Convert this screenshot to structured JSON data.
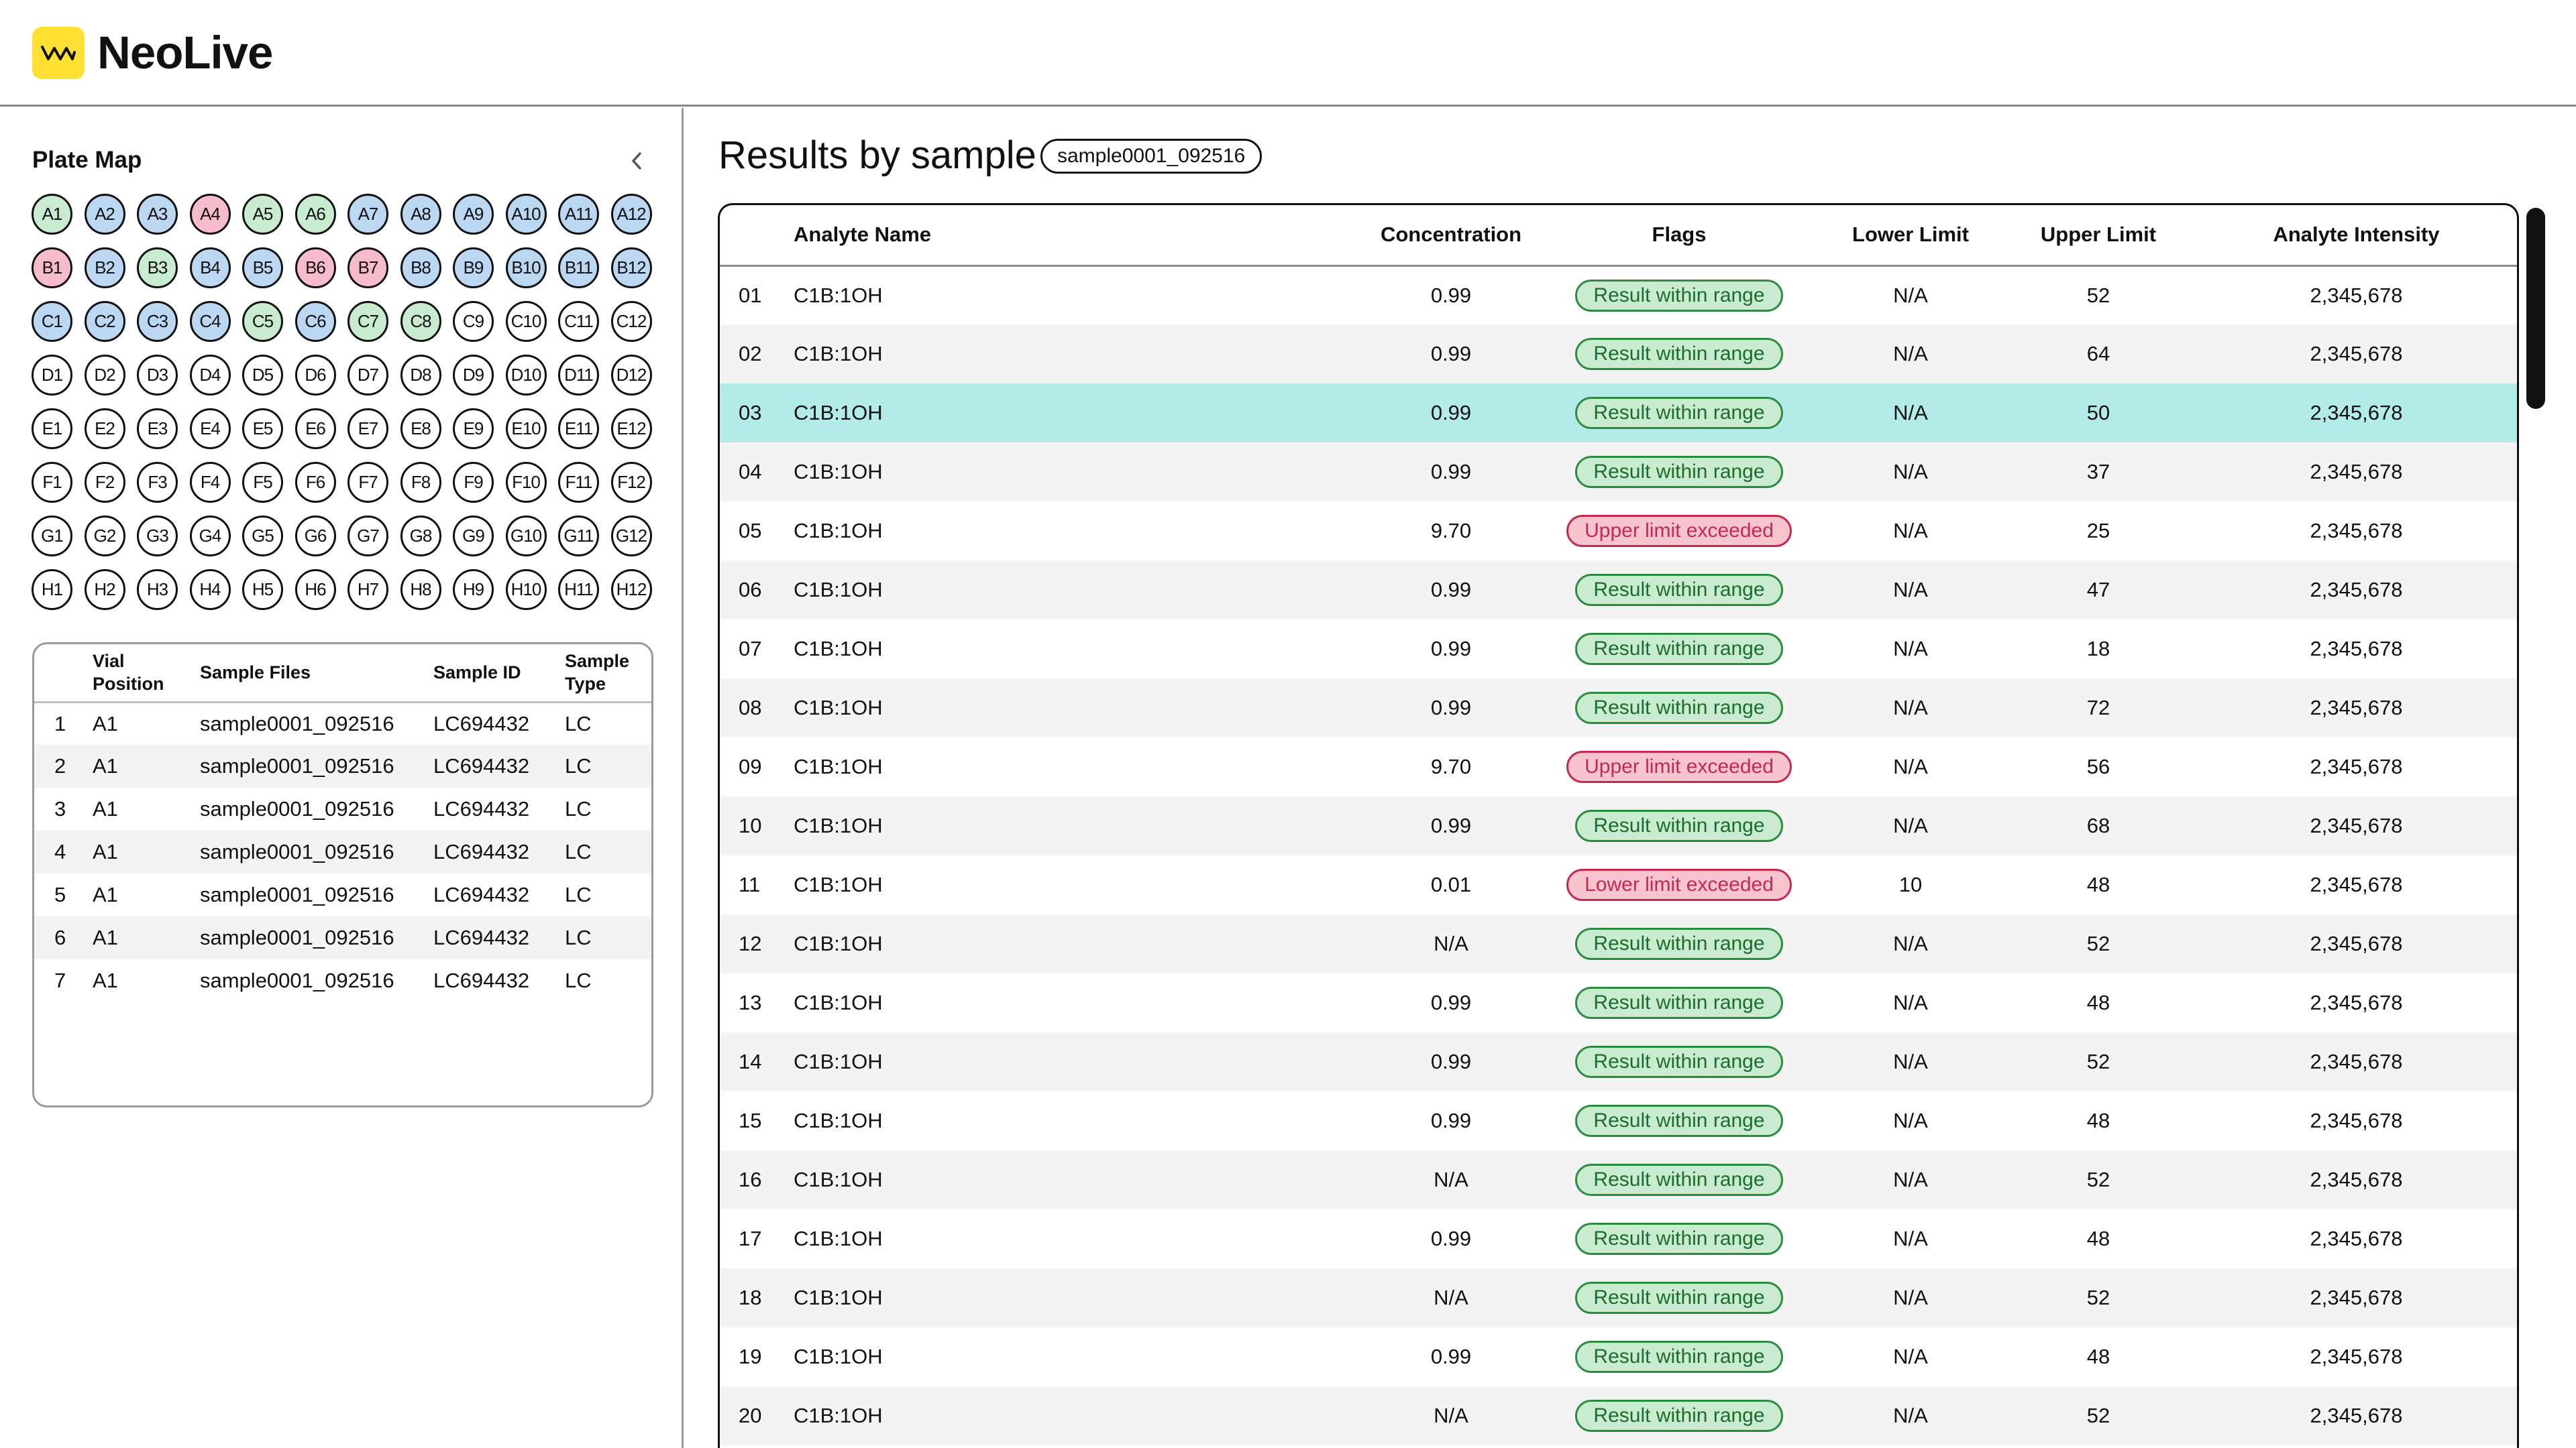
{
  "app": {
    "title": "NeoLive",
    "accent": "#ffe033"
  },
  "plate": {
    "title": "Plate Map",
    "wells": [
      {
        "label": "A1",
        "status": "green"
      },
      {
        "label": "A2",
        "status": "blue"
      },
      {
        "label": "A3",
        "status": "blue"
      },
      {
        "label": "A4",
        "status": "red"
      },
      {
        "label": "A5",
        "status": "green"
      },
      {
        "label": "A6",
        "status": "green"
      },
      {
        "label": "A7",
        "status": "blue"
      },
      {
        "label": "A8",
        "status": "blue"
      },
      {
        "label": "A9",
        "status": "blue"
      },
      {
        "label": "A10",
        "status": "blue"
      },
      {
        "label": "A11",
        "status": "blue"
      },
      {
        "label": "A12",
        "status": "blue"
      },
      {
        "label": "B1",
        "status": "red"
      },
      {
        "label": "B2",
        "status": "blue"
      },
      {
        "label": "B3",
        "status": "green"
      },
      {
        "label": "B4",
        "status": "blue"
      },
      {
        "label": "B5",
        "status": "blue"
      },
      {
        "label": "B6",
        "status": "red"
      },
      {
        "label": "B7",
        "status": "red"
      },
      {
        "label": "B8",
        "status": "blue"
      },
      {
        "label": "B9",
        "status": "blue"
      },
      {
        "label": "B10",
        "status": "blue"
      },
      {
        "label": "B11",
        "status": "blue"
      },
      {
        "label": "B12",
        "status": "blue"
      },
      {
        "label": "C1",
        "status": "blue"
      },
      {
        "label": "C2",
        "status": "blue"
      },
      {
        "label": "C3",
        "status": "blue"
      },
      {
        "label": "C4",
        "status": "blue"
      },
      {
        "label": "C5",
        "status": "green"
      },
      {
        "label": "C6",
        "status": "blue"
      },
      {
        "label": "C7",
        "status": "green"
      },
      {
        "label": "C8",
        "status": "green"
      },
      {
        "label": "C9",
        "status": "empty"
      },
      {
        "label": "C10",
        "status": "empty"
      },
      {
        "label": "C11",
        "status": "empty"
      },
      {
        "label": "C12",
        "status": "empty"
      },
      {
        "label": "D1",
        "status": "empty"
      },
      {
        "label": "D2",
        "status": "empty"
      },
      {
        "label": "D3",
        "status": "empty"
      },
      {
        "label": "D4",
        "status": "empty"
      },
      {
        "label": "D5",
        "status": "empty"
      },
      {
        "label": "D6",
        "status": "empty"
      },
      {
        "label": "D7",
        "status": "empty"
      },
      {
        "label": "D8",
        "status": "empty"
      },
      {
        "label": "D9",
        "status": "empty"
      },
      {
        "label": "D10",
        "status": "empty"
      },
      {
        "label": "D11",
        "status": "empty"
      },
      {
        "label": "D12",
        "status": "empty"
      },
      {
        "label": "E1",
        "status": "empty"
      },
      {
        "label": "E2",
        "status": "empty"
      },
      {
        "label": "E3",
        "status": "empty"
      },
      {
        "label": "E4",
        "status": "empty"
      },
      {
        "label": "E5",
        "status": "empty"
      },
      {
        "label": "E6",
        "status": "empty"
      },
      {
        "label": "E7",
        "status": "empty"
      },
      {
        "label": "E8",
        "status": "empty"
      },
      {
        "label": "E9",
        "status": "empty"
      },
      {
        "label": "E10",
        "status": "empty"
      },
      {
        "label": "E11",
        "status": "empty"
      },
      {
        "label": "E12",
        "status": "empty"
      },
      {
        "label": "F1",
        "status": "empty"
      },
      {
        "label": "F2",
        "status": "empty"
      },
      {
        "label": "F3",
        "status": "empty"
      },
      {
        "label": "F4",
        "status": "empty"
      },
      {
        "label": "F5",
        "status": "empty"
      },
      {
        "label": "F6",
        "status": "empty"
      },
      {
        "label": "F7",
        "status": "empty"
      },
      {
        "label": "F8",
        "status": "empty"
      },
      {
        "label": "F9",
        "status": "empty"
      },
      {
        "label": "F10",
        "status": "empty"
      },
      {
        "label": "F11",
        "status": "empty"
      },
      {
        "label": "F12",
        "status": "empty"
      },
      {
        "label": "G1",
        "status": "empty"
      },
      {
        "label": "G2",
        "status": "empty"
      },
      {
        "label": "G3",
        "status": "empty"
      },
      {
        "label": "G4",
        "status": "empty"
      },
      {
        "label": "G5",
        "status": "empty"
      },
      {
        "label": "G6",
        "status": "empty"
      },
      {
        "label": "G7",
        "status": "empty"
      },
      {
        "label": "G8",
        "status": "empty"
      },
      {
        "label": "G9",
        "status": "empty"
      },
      {
        "label": "G10",
        "status": "empty"
      },
      {
        "label": "G11",
        "status": "empty"
      },
      {
        "label": "G12",
        "status": "empty"
      },
      {
        "label": "H1",
        "status": "empty"
      },
      {
        "label": "H2",
        "status": "empty"
      },
      {
        "label": "H3",
        "status": "empty"
      },
      {
        "label": "H4",
        "status": "empty"
      },
      {
        "label": "H5",
        "status": "empty"
      },
      {
        "label": "H6",
        "status": "empty"
      },
      {
        "label": "H7",
        "status": "empty"
      },
      {
        "label": "H8",
        "status": "empty"
      },
      {
        "label": "H9",
        "status": "empty"
      },
      {
        "label": "H10",
        "status": "empty"
      },
      {
        "label": "H11",
        "status": "empty"
      },
      {
        "label": "H12",
        "status": "empty"
      }
    ],
    "status_colors": {
      "green": "#c9ecd0",
      "blue": "#bcd7f2",
      "red": "#f6bccb",
      "empty": "#ffffff"
    }
  },
  "samples": {
    "headers": {
      "num": "",
      "position": "Vial Position",
      "files": "Sample Files",
      "id": "Sample ID",
      "type": "Sample Type"
    },
    "rows": [
      {
        "num": "1",
        "position": "A1",
        "file": "sample0001_092516",
        "id": "LC694432",
        "type": "LC"
      },
      {
        "num": "2",
        "position": "A1",
        "file": "sample0001_092516",
        "id": "LC694432",
        "type": "LC"
      },
      {
        "num": "3",
        "position": "A1",
        "file": "sample0001_092516",
        "id": "LC694432",
        "type": "LC"
      },
      {
        "num": "4",
        "position": "A1",
        "file": "sample0001_092516",
        "id": "LC694432",
        "type": "LC"
      },
      {
        "num": "5",
        "position": "A1",
        "file": "sample0001_092516",
        "id": "LC694432",
        "type": "LC"
      },
      {
        "num": "6",
        "position": "A1",
        "file": "sample0001_092516",
        "id": "LC694432",
        "type": "LC"
      },
      {
        "num": "7",
        "position": "A1",
        "file": "sample0001_092516",
        "id": "LC694432",
        "type": "LC"
      }
    ]
  },
  "results": {
    "title": "Results by sample",
    "sample_chip": "sample0001_092516",
    "headers": {
      "num": "",
      "name": "Analyte Name",
      "concentration": "Concentration",
      "flags": "Flags",
      "lower": "Lower Limit",
      "upper": "Upper Limit",
      "intensity": "Analyte Intensity"
    },
    "selected_row": "03",
    "rows": [
      {
        "num": "01",
        "name": "C1B:1OH",
        "concentration": "0.99",
        "flag": "Result within range",
        "flag_kind": "ok",
        "lower": "N/A",
        "upper": "52",
        "intensity": "2,345,678"
      },
      {
        "num": "02",
        "name": "C1B:1OH",
        "concentration": "0.99",
        "flag": "Result within range",
        "flag_kind": "ok",
        "lower": "N/A",
        "upper": "64",
        "intensity": "2,345,678"
      },
      {
        "num": "03",
        "name": "C1B:1OH",
        "concentration": "0.99",
        "flag": "Result within range",
        "flag_kind": "ok",
        "lower": "N/A",
        "upper": "50",
        "intensity": "2,345,678"
      },
      {
        "num": "04",
        "name": "C1B:1OH",
        "concentration": "0.99",
        "flag": "Result within range",
        "flag_kind": "ok",
        "lower": "N/A",
        "upper": "37",
        "intensity": "2,345,678"
      },
      {
        "num": "05",
        "name": "C1B:1OH",
        "concentration": "9.70",
        "flag": "Upper limit exceeded",
        "flag_kind": "bad",
        "lower": "N/A",
        "upper": "25",
        "intensity": "2,345,678"
      },
      {
        "num": "06",
        "name": "C1B:1OH",
        "concentration": "0.99",
        "flag": "Result within range",
        "flag_kind": "ok",
        "lower": "N/A",
        "upper": "47",
        "intensity": "2,345,678"
      },
      {
        "num": "07",
        "name": "C1B:1OH",
        "concentration": "0.99",
        "flag": "Result within range",
        "flag_kind": "ok",
        "lower": "N/A",
        "upper": "18",
        "intensity": "2,345,678"
      },
      {
        "num": "08",
        "name": "C1B:1OH",
        "concentration": "0.99",
        "flag": "Result within range",
        "flag_kind": "ok",
        "lower": "N/A",
        "upper": "72",
        "intensity": "2,345,678"
      },
      {
        "num": "09",
        "name": "C1B:1OH",
        "concentration": "9.70",
        "flag": "Upper limit exceeded",
        "flag_kind": "bad",
        "lower": "N/A",
        "upper": "56",
        "intensity": "2,345,678"
      },
      {
        "num": "10",
        "name": "C1B:1OH",
        "concentration": "0.99",
        "flag": "Result within range",
        "flag_kind": "ok",
        "lower": "N/A",
        "upper": "68",
        "intensity": "2,345,678"
      },
      {
        "num": "11",
        "name": "C1B:1OH",
        "concentration": "0.01",
        "flag": "Lower limit exceeded",
        "flag_kind": "bad",
        "lower": "10",
        "upper": "48",
        "intensity": "2,345,678"
      },
      {
        "num": "12",
        "name": "C1B:1OH",
        "concentration": "N/A",
        "flag": "Result within range",
        "flag_kind": "ok",
        "lower": "N/A",
        "upper": "52",
        "intensity": "2,345,678"
      },
      {
        "num": "13",
        "name": "C1B:1OH",
        "concentration": "0.99",
        "flag": "Result within range",
        "flag_kind": "ok",
        "lower": "N/A",
        "upper": "48",
        "intensity": "2,345,678"
      },
      {
        "num": "14",
        "name": "C1B:1OH",
        "concentration": "0.99",
        "flag": "Result within range",
        "flag_kind": "ok",
        "lower": "N/A",
        "upper": "52",
        "intensity": "2,345,678"
      },
      {
        "num": "15",
        "name": "C1B:1OH",
        "concentration": "0.99",
        "flag": "Result within range",
        "flag_kind": "ok",
        "lower": "N/A",
        "upper": "48",
        "intensity": "2,345,678"
      },
      {
        "num": "16",
        "name": "C1B:1OH",
        "concentration": "N/A",
        "flag": "Result within range",
        "flag_kind": "ok",
        "lower": "N/A",
        "upper": "52",
        "intensity": "2,345,678"
      },
      {
        "num": "17",
        "name": "C1B:1OH",
        "concentration": "0.99",
        "flag": "Result within range",
        "flag_kind": "ok",
        "lower": "N/A",
        "upper": "48",
        "intensity": "2,345,678"
      },
      {
        "num": "18",
        "name": "C1B:1OH",
        "concentration": "N/A",
        "flag": "Result within range",
        "flag_kind": "ok",
        "lower": "N/A",
        "upper": "52",
        "intensity": "2,345,678"
      },
      {
        "num": "19",
        "name": "C1B:1OH",
        "concentration": "0.99",
        "flag": "Result within range",
        "flag_kind": "ok",
        "lower": "N/A",
        "upper": "48",
        "intensity": "2,345,678"
      },
      {
        "num": "20",
        "name": "C1B:1OH",
        "concentration": "N/A",
        "flag": "Result within range",
        "flag_kind": "ok",
        "lower": "N/A",
        "upper": "52",
        "intensity": "2,345,678"
      }
    ]
  },
  "icons": {
    "logo": "neolive-logo-icon",
    "collapse": "chevron-left-icon"
  }
}
